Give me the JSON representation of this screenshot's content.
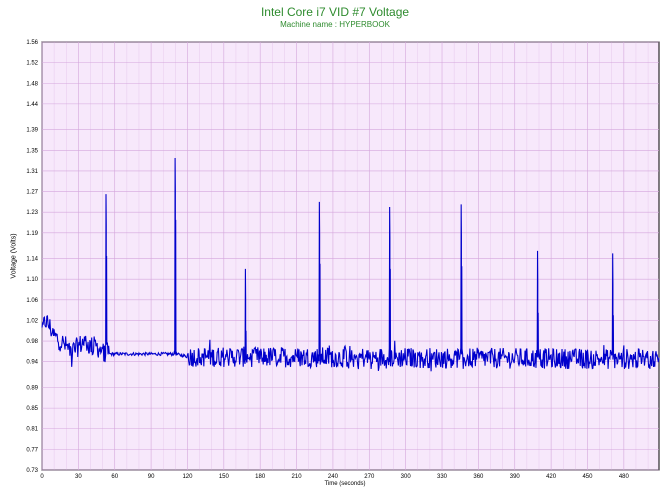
{
  "chart_data": {
    "type": "line",
    "title": "Intel Core i7 VID #7 Voltage",
    "subtitle": "Machine name : HYPERBOOK",
    "xlabel": "Time (seconds)",
    "ylabel": "Voltage (Volts)",
    "xlim": [
      0,
      509
    ],
    "ylim": [
      0.73,
      1.56
    ],
    "x_ticks": [
      0,
      30,
      60,
      90,
      120,
      150,
      180,
      210,
      240,
      270,
      300,
      330,
      360,
      390,
      420,
      450,
      480
    ],
    "y_ticks": [
      "0.73",
      "0.77",
      "0.81",
      "0.85",
      "0.89",
      "0.94",
      "0.98",
      "1.02",
      "1.06",
      "1.10",
      "1.14",
      "1.19",
      "1.23",
      "1.27",
      "1.31",
      "1.35",
      "1.39",
      "1.44",
      "1.48",
      "1.52",
      "1.56"
    ],
    "grid": true,
    "colors": {
      "plot_bg": "#f7e8fb",
      "grid": "#d4a6dc",
      "line": "#0000cc",
      "title": "#2e8b2e"
    },
    "series": [
      {
        "baseline": [
          [
            0,
            1.0
          ],
          [
            3,
            1.02
          ],
          [
            6,
            1.01
          ],
          [
            10,
            0.99
          ],
          [
            15,
            0.98
          ],
          [
            20,
            0.97
          ],
          [
            25,
            0.96
          ],
          [
            30,
            0.97
          ],
          [
            35,
            0.98
          ],
          [
            40,
            0.97
          ],
          [
            45,
            0.97
          ],
          [
            50,
            0.96
          ],
          [
            55,
            0.955
          ],
          [
            60,
            0.955
          ],
          [
            70,
            0.955
          ],
          [
            80,
            0.955
          ],
          [
            90,
            0.955
          ],
          [
            100,
            0.955
          ],
          [
            110,
            0.955
          ],
          [
            120,
            0.95
          ],
          [
            509,
            0.945
          ]
        ],
        "spikes": [
          [
            53,
            1.265
          ],
          [
            110,
            1.335
          ],
          [
            168,
            1.12
          ],
          [
            229,
            1.25
          ],
          [
            287,
            1.24
          ],
          [
            346,
            1.245
          ],
          [
            409,
            1.155
          ],
          [
            471,
            1.15
          ]
        ],
        "noise_amplitude": 0.02
      }
    ]
  }
}
